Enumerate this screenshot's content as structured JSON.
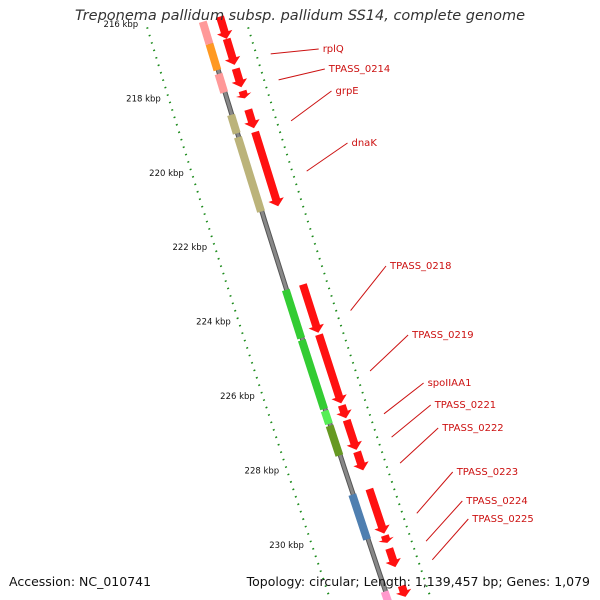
{
  "title": "Treponema pallidum subsp. pallidum SS14, complete genome",
  "footer": {
    "accession": "Accession: NC_010741",
    "summary": "Topology: circular; Length: 1,139,457 bp; Genes: 1,079"
  },
  "colors": {
    "gene_red": "#ff1111",
    "backbone": "#888888",
    "tick_green": "#1a8a1a",
    "label_red": "#cc1111"
  },
  "scale_labels": [
    {
      "kbp": 216,
      "text": "216 kbp",
      "faded": true
    },
    {
      "kbp": 218,
      "text": "218 kbp"
    },
    {
      "kbp": 220,
      "text": "220 kbp"
    },
    {
      "kbp": 222,
      "text": "222 kbp"
    },
    {
      "kbp": 224,
      "text": "224 kbp"
    },
    {
      "kbp": 226,
      "text": "226 kbp"
    },
    {
      "kbp": 228,
      "text": "228 kbp"
    },
    {
      "kbp": 230,
      "text": "230 kbp"
    }
  ],
  "genes": [
    {
      "label": "",
      "start_kbp": 215.8,
      "end_kbp": 216.4,
      "cog": "#ff9999"
    },
    {
      "label": "rplQ",
      "start_kbp": 216.4,
      "end_kbp": 217.1,
      "cog": "#ff9922"
    },
    {
      "label": "TPASS_0214",
      "start_kbp": 217.2,
      "end_kbp": 217.7,
      "cog": "#ff9999"
    },
    {
      "label": "",
      "start_kbp": 217.8,
      "end_kbp": 218.0,
      "cog": ""
    },
    {
      "label": "grpE",
      "start_kbp": 218.3,
      "end_kbp": 218.8,
      "cog": "#bbb37a"
    },
    {
      "label": "dnaK",
      "start_kbp": 218.9,
      "end_kbp": 220.9,
      "cog": "#bbb37a"
    },
    {
      "label": "TPASS_0218",
      "start_kbp": 223.0,
      "end_kbp": 224.3,
      "cog": "#33cc33"
    },
    {
      "label": "TPASS_0219",
      "start_kbp": 224.35,
      "end_kbp": 226.2,
      "cog": "#33cc33"
    },
    {
      "label": "spoIIAA1",
      "start_kbp": 226.25,
      "end_kbp": 226.6,
      "cog": "#55ee55"
    },
    {
      "label": "TPASS_0221",
      "start_kbp": 226.65,
      "end_kbp": 227.45,
      "cog": "#669922"
    },
    {
      "label": "TPASS_0222",
      "start_kbp": 227.5,
      "end_kbp": 228.0,
      "cog": ""
    },
    {
      "label": "TPASS_0223",
      "start_kbp": 228.5,
      "end_kbp": 229.7,
      "cog": "#4f7fb0"
    },
    {
      "label": "TPASS_0224",
      "start_kbp": 229.75,
      "end_kbp": 229.95,
      "cog": ""
    },
    {
      "label": "TPASS_0225",
      "start_kbp": 230.1,
      "end_kbp": 230.6,
      "cog": ""
    },
    {
      "label": "",
      "start_kbp": 231.1,
      "end_kbp": 231.4,
      "cog": "#ff99cc"
    }
  ]
}
